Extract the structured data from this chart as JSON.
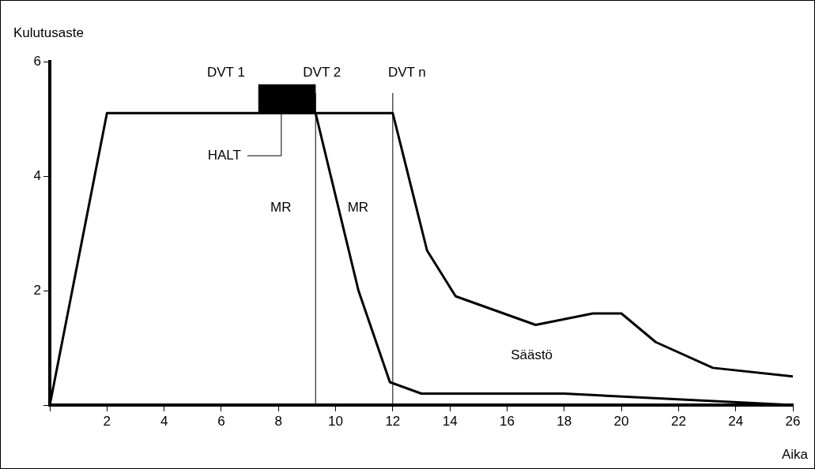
{
  "chart_data": {
    "type": "line",
    "xlabel": "Aika",
    "ylabel": "Kulutusaste",
    "xlim": [
      0,
      26
    ],
    "ylim": [
      0,
      6
    ],
    "xticks": [
      {
        "value": 0,
        "label": null
      },
      2,
      4,
      6,
      8,
      10,
      12,
      14,
      16,
      18,
      20,
      22,
      24,
      26
    ],
    "yticks": [
      {
        "value": 0,
        "label": null
      },
      2,
      4,
      6
    ],
    "series": [
      {
        "color": "#000000",
        "x": [
          0,
          2,
          9.3,
          10.8,
          11.9,
          13,
          18,
          26
        ],
        "values": [
          0,
          5.1,
          5.1,
          2.0,
          0.4,
          0.2,
          0.2,
          0
        ]
      },
      {
        "color": "#000000",
        "x": [
          9.3,
          12,
          13.2,
          14.2,
          17,
          19,
          20,
          21.2,
          23.2,
          26
        ],
        "values": [
          5.1,
          5.1,
          2.7,
          1.9,
          1.4,
          1.6,
          1.6,
          1.1,
          0.65,
          0.5
        ]
      },
      {
        "type": "bar",
        "color": "#000000",
        "x": [
          8.3
        ],
        "base": [
          5.1
        ],
        "values": [
          0.5
        ]
      }
    ],
    "ref_lines": [
      {
        "axis": "x",
        "value": 9.3,
        "color": "#000000"
      },
      {
        "axis": "x",
        "value": 12,
        "color": "#000000"
      }
    ],
    "annotations": [
      {
        "text": "DVT 1",
        "x": 7.3,
        "y": 5.6
      },
      {
        "text": "DVT 2",
        "x": 9.3,
        "y": 5.6
      },
      {
        "text": "DVT n",
        "x": 12,
        "y": 5.1
      },
      {
        "text": "HALT",
        "x": 8.1,
        "y": 5.1
      },
      {
        "text": "MR",
        "x": 9.3,
        "y": 3.45
      },
      {
        "text": "MR",
        "x": 12,
        "y": 3.45
      },
      {
        "text": "Säästö",
        "x": 17,
        "y": 1.4
      }
    ],
    "legend": false,
    "grid": false,
    "marker": "none",
    "line_style": "solid"
  }
}
